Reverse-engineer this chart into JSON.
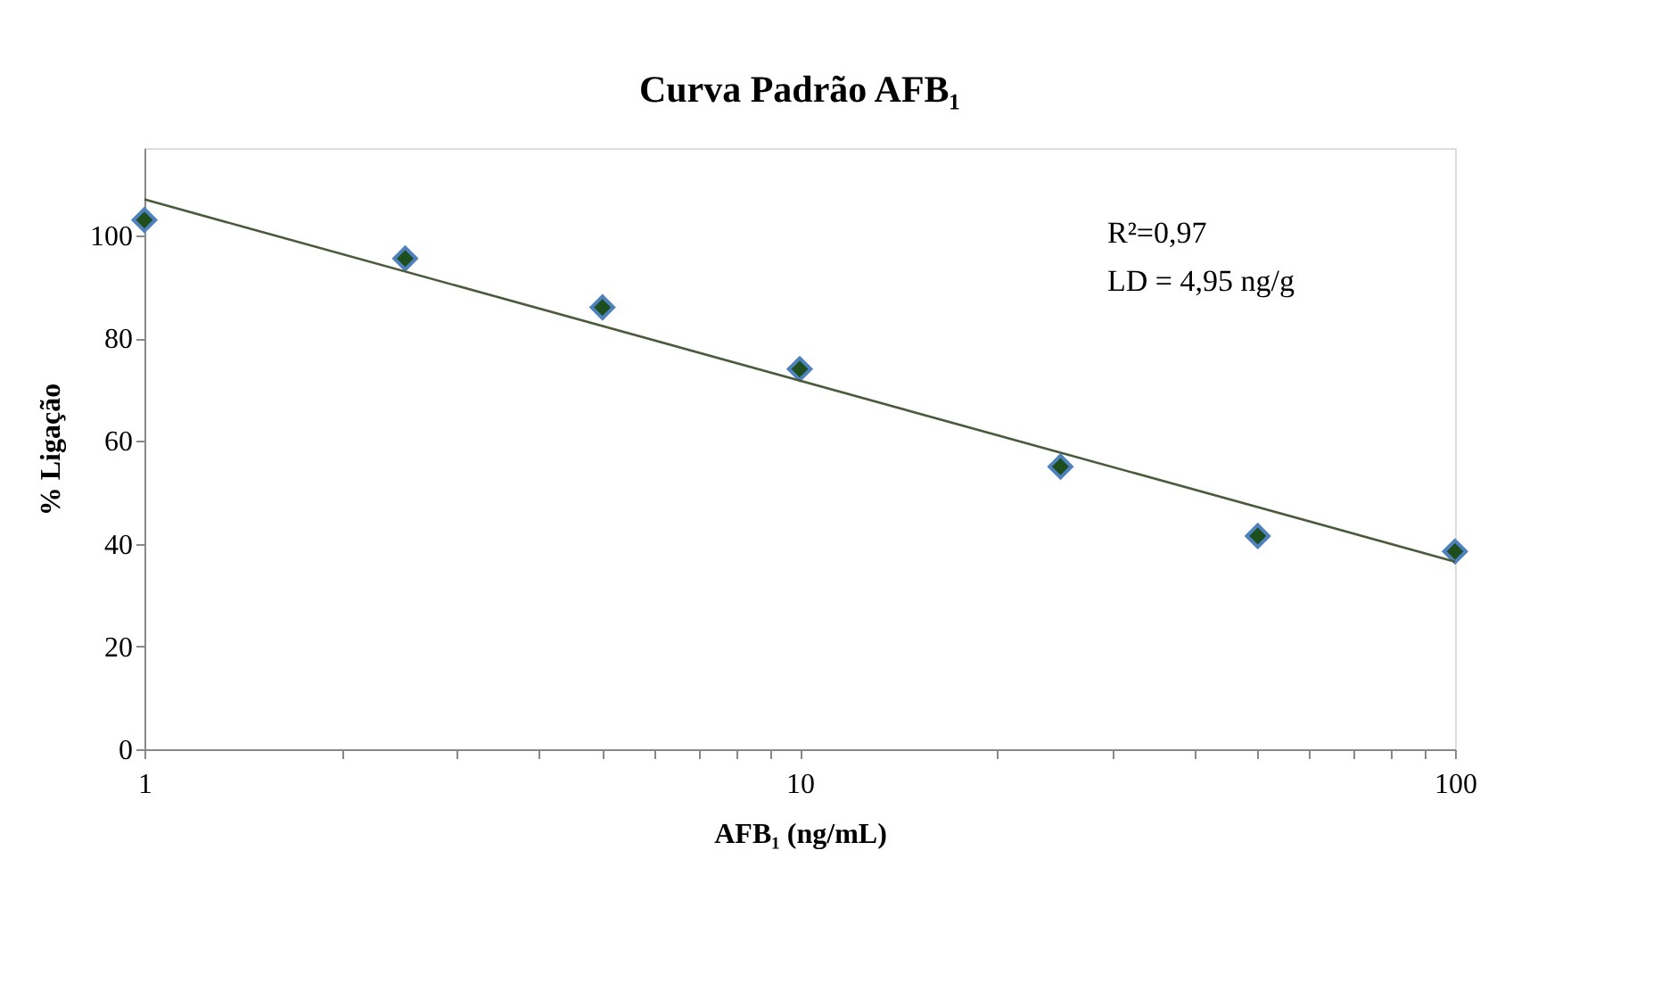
{
  "chart_data": {
    "type": "scatter",
    "title": "Curva Padrão AFB₁",
    "xlabel": "AFB₁ (ng/mL)",
    "ylabel": "% Ligação",
    "log": "x",
    "xlim": [
      1,
      100
    ],
    "ylim": [
      0,
      117
    ],
    "xticks": [
      1,
      {
        "value": 2,
        "label": null
      },
      {
        "value": 3,
        "label": null
      },
      {
        "value": 4,
        "label": null
      },
      {
        "value": 5,
        "label": null
      },
      {
        "value": 6,
        "label": null
      },
      {
        "value": 7,
        "label": null
      },
      {
        "value": 8,
        "label": null
      },
      {
        "value": 9,
        "label": null
      },
      10,
      {
        "value": 20,
        "label": null
      },
      {
        "value": 30,
        "label": null
      },
      {
        "value": 40,
        "label": null
      },
      {
        "value": 50,
        "label": null
      },
      {
        "value": 60,
        "label": null
      },
      {
        "value": 70,
        "label": null
      },
      {
        "value": 80,
        "label": null
      },
      {
        "value": 90,
        "label": null
      },
      100
    ],
    "yticks": [
      0,
      20,
      40,
      60,
      80,
      100
    ],
    "grid": false,
    "series": [
      {
        "marker": "diamond",
        "color": "#1e4d1e",
        "x": [
          1,
          2.5,
          5,
          10,
          25,
          50,
          100
        ],
        "values": [
          103,
          95.5,
          86,
          74,
          55,
          41.5,
          38.5
        ]
      },
      {
        "type": "line",
        "line_style": "solid",
        "marker": "none",
        "color": "#4a5a3a",
        "x": [
          1,
          100
        ],
        "values": [
          107,
          36.5
        ]
      }
    ],
    "annotations": [
      "R²=0,97",
      "LD = 4,95 ng/g"
    ]
  }
}
